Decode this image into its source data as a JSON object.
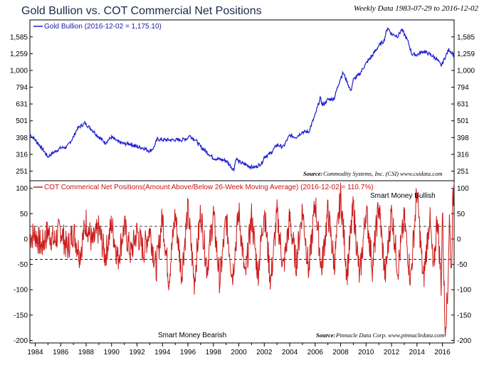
{
  "header": {
    "title": "Gold Bullion vs. COT Commercial Net Positions",
    "subtitle": "Weekly Data 1983-07-29 to 2016-12-02"
  },
  "colors": {
    "gold_line": "#1a1ad0",
    "cot_line": "#cc1a1a",
    "frame": "#000000"
  },
  "chart_data": [
    {
      "type": "line",
      "scale": "log",
      "legend": "Gold Bullion (2016-12-02 = 1,175.10)",
      "source_label": "Source:",
      "source_text": "Commodity Systems, Inc. (CSI) www.csidata.com",
      "yticks": [
        "1,585",
        "1,259",
        "1,000",
        "794",
        "631",
        "501",
        "398",
        "316",
        "251"
      ],
      "ytick_values": [
        1585,
        1259,
        1000,
        794,
        631,
        501,
        398,
        316,
        251
      ],
      "ylim": [
        220,
        2000
      ],
      "xlim": [
        1983.58,
        2016.92
      ],
      "series": [
        {
          "x": [
            1983.6,
            1984.0,
            1984.5,
            1985.0,
            1985.2,
            1985.6,
            1986.0,
            1986.5,
            1987.0,
            1987.3,
            1987.9,
            1988.5,
            1989.0,
            1989.5,
            1990.0,
            1990.5,
            1991.0,
            1991.5,
            1992.0,
            1992.5,
            1993.0,
            1993.3,
            1993.6,
            1994.0,
            1994.5,
            1995.0,
            1995.5,
            1996.0,
            1996.1,
            1996.6,
            1997.0,
            1997.5,
            1998.0,
            1998.5,
            1999.0,
            1999.6,
            1999.8,
            2000.0,
            2000.5,
            2001.0,
            2001.3,
            2001.8,
            2002.0,
            2002.5,
            2003.0,
            2003.5,
            2004.0,
            2004.5,
            2005.0,
            2005.5,
            2006.0,
            2006.4,
            2006.6,
            2007.0,
            2007.5,
            2008.0,
            2008.2,
            2008.8,
            2009.0,
            2009.5,
            2010.0,
            2010.5,
            2011.0,
            2011.4,
            2011.7,
            2012.0,
            2012.5,
            2012.8,
            2013.0,
            2013.3,
            2013.6,
            2014.0,
            2014.5,
            2015.0,
            2015.5,
            2015.9,
            2016.0,
            2016.5,
            2016.8,
            2016.92
          ],
          "y": [
            415,
            385,
            345,
            305,
            315,
            330,
            345,
            350,
            400,
            450,
            485,
            440,
            400,
            370,
            400,
            375,
            365,
            365,
            350,
            345,
            330,
            345,
            390,
            385,
            385,
            385,
            385,
            395,
            410,
            385,
            350,
            325,
            300,
            295,
            290,
            255,
            300,
            285,
            275,
            265,
            265,
            280,
            305,
            320,
            360,
            350,
            410,
            400,
            430,
            430,
            540,
            680,
            620,
            670,
            680,
            900,
            970,
            750,
            880,
            950,
            1100,
            1230,
            1400,
            1500,
            1800,
            1650,
            1600,
            1750,
            1650,
            1480,
            1250,
            1240,
            1300,
            1250,
            1180,
            1070,
            1100,
            1330,
            1270,
            1175
          ]
        }
      ]
    },
    {
      "type": "line",
      "legend": "COT Commerical Net Positions(Amount Above/Below 26-Week Moving Average) (2016-12-02 = 110.7%)",
      "source_label": "Source:",
      "source_text": "Pinnacle Data Corp. www.pinnacledata.com",
      "annotation_top": "Smart Money Bullish",
      "annotation_bottom": "Smart Money Bearish",
      "yticks": [
        "100",
        "50",
        "0",
        "-50",
        "-100",
        "-150",
        "-200"
      ],
      "ytick_values": [
        100,
        50,
        0,
        -50,
        -100,
        -150,
        -200
      ],
      "ylim": [
        -205,
        115
      ],
      "reference_lines": [
        25,
        -40
      ],
      "xticks": [
        "1984",
        "1986",
        "1988",
        "1990",
        "1992",
        "1994",
        "1996",
        "1998",
        "2000",
        "2002",
        "2004",
        "2006",
        "2008",
        "2010",
        "2012",
        "2014",
        "2016"
      ],
      "xtick_values": [
        1984,
        1986,
        1988,
        1990,
        1992,
        1994,
        1996,
        1998,
        2000,
        2002,
        2004,
        2006,
        2008,
        2010,
        2012,
        2014,
        2016
      ],
      "xlim": [
        1983.58,
        2016.92
      ],
      "series": [
        {
          "x": [
            1983.6,
            1984.0,
            1984.5,
            1985.0,
            1985.5,
            1986.0,
            1986.5,
            1987.0,
            1987.5,
            1988.0,
            1988.5,
            1989.0,
            1989.5,
            1990.0,
            1990.5,
            1991.0,
            1991.5,
            1992.0,
            1992.5,
            1993.0,
            1993.5,
            1994.0,
            1994.5,
            1995.0,
            1995.5,
            1996.0,
            1996.5,
            1997.0,
            1997.5,
            1998.0,
            1998.5,
            1999.0,
            1999.5,
            2000.0,
            2000.5,
            2001.0,
            2001.5,
            2002.0,
            2002.5,
            2003.0,
            2003.5,
            2004.0,
            2004.5,
            2005.0,
            2005.5,
            2006.0,
            2006.5,
            2007.0,
            2007.5,
            2008.0,
            2008.5,
            2009.0,
            2009.5,
            2010.0,
            2010.5,
            2011.0,
            2011.5,
            2012.0,
            2012.5,
            2013.0,
            2013.5,
            2014.0,
            2014.5,
            2015.0,
            2015.3,
            2015.6,
            2015.9,
            2016.0,
            2016.2,
            2016.4,
            2016.55,
            2016.7,
            2016.8,
            2016.92
          ],
          "y": [
            5,
            10,
            -15,
            15,
            -5,
            20,
            -20,
            15,
            -30,
            35,
            -10,
            20,
            -35,
            30,
            -40,
            25,
            -30,
            15,
            -25,
            20,
            -60,
            45,
            -80,
            50,
            -70,
            60,
            -85,
            55,
            -60,
            50,
            -85,
            40,
            -75,
            55,
            -80,
            45,
            -70,
            60,
            -85,
            50,
            -60,
            40,
            -50,
            60,
            -65,
            75,
            -60,
            55,
            -50,
            85,
            -70,
            65,
            -80,
            60,
            -55,
            70,
            -75,
            55,
            -60,
            40,
            -80,
            95,
            -85,
            45,
            -70,
            50,
            -90,
            60,
            -170,
            -120,
            40,
            -70,
            60,
            110.7
          ]
        }
      ]
    }
  ]
}
